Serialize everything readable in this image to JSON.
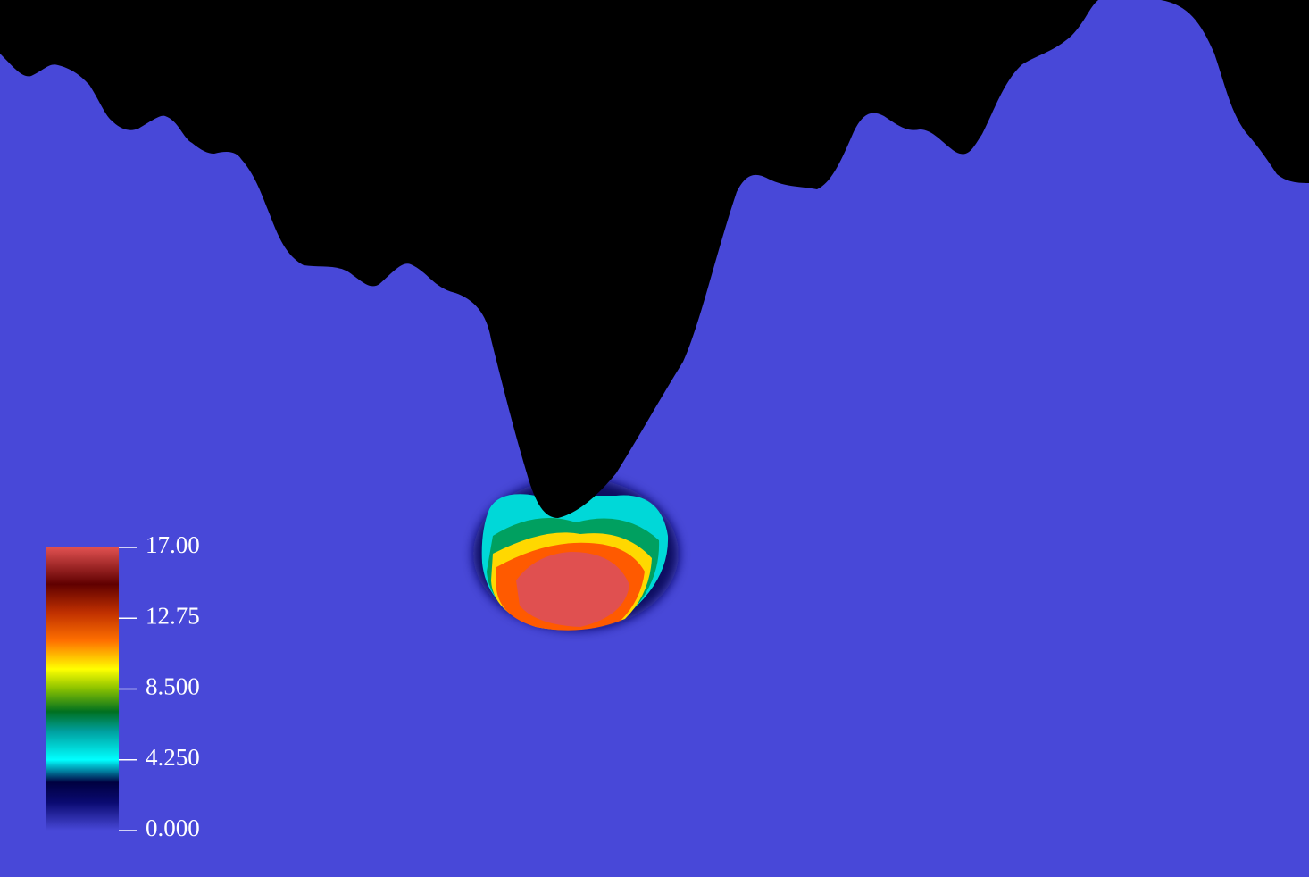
{
  "colorbar": {
    "range": [
      0,
      17
    ],
    "ticks": [
      {
        "value": 0,
        "label": "0.000"
      },
      {
        "value": 4.25,
        "label": "4.250"
      },
      {
        "value": 8.5,
        "label": "8.500"
      },
      {
        "value": 12.75,
        "label": "12.75"
      },
      {
        "value": 17,
        "label": "17.00"
      }
    ]
  }
}
